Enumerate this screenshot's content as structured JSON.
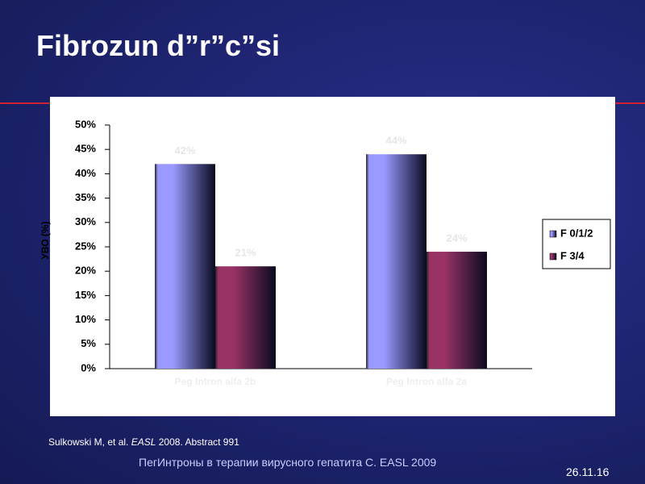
{
  "chart_data": {
    "type": "bar",
    "title": "Fibrozun d”r”c”si",
    "y_label": "УВО (%)",
    "categories": [
      "Peg Intron alfa 2b",
      "Peg Intron alfa 2a"
    ],
    "series": [
      {
        "name": "F 0/1/2",
        "color": "#9999ff",
        "values": [
          42,
          44
        ],
        "value_labels": [
          "42%",
          "44%"
        ]
      },
      {
        "name": "F 3/4",
        "color": "#993366",
        "values": [
          21,
          24
        ],
        "value_labels": [
          "21%",
          "24%"
        ]
      }
    ],
    "ylim": [
      0,
      50
    ],
    "yticks": [
      {
        "value": 0,
        "label": "0%"
      },
      {
        "value": 5,
        "label": "5%"
      },
      {
        "value": 10,
        "label": "10%"
      },
      {
        "value": 15,
        "label": "15%"
      },
      {
        "value": 20,
        "label": "20%"
      },
      {
        "value": 25,
        "label": "25%"
      },
      {
        "value": 30,
        "label": "30%"
      },
      {
        "value": 35,
        "label": "35%"
      },
      {
        "value": 40,
        "label": "40%"
      },
      {
        "value": 45,
        "label": "45%"
      },
      {
        "value": 50,
        "label": "50%"
      }
    ],
    "legend_position": "right",
    "footnote": {
      "author": "Sulkowski M, et al.",
      "journal": "EASL",
      "rest": "2008. Abstract 991"
    },
    "footer": "ПегИнтроны в терапии вирусного гепатита C. EASL 2009",
    "date": "26.11.16"
  }
}
